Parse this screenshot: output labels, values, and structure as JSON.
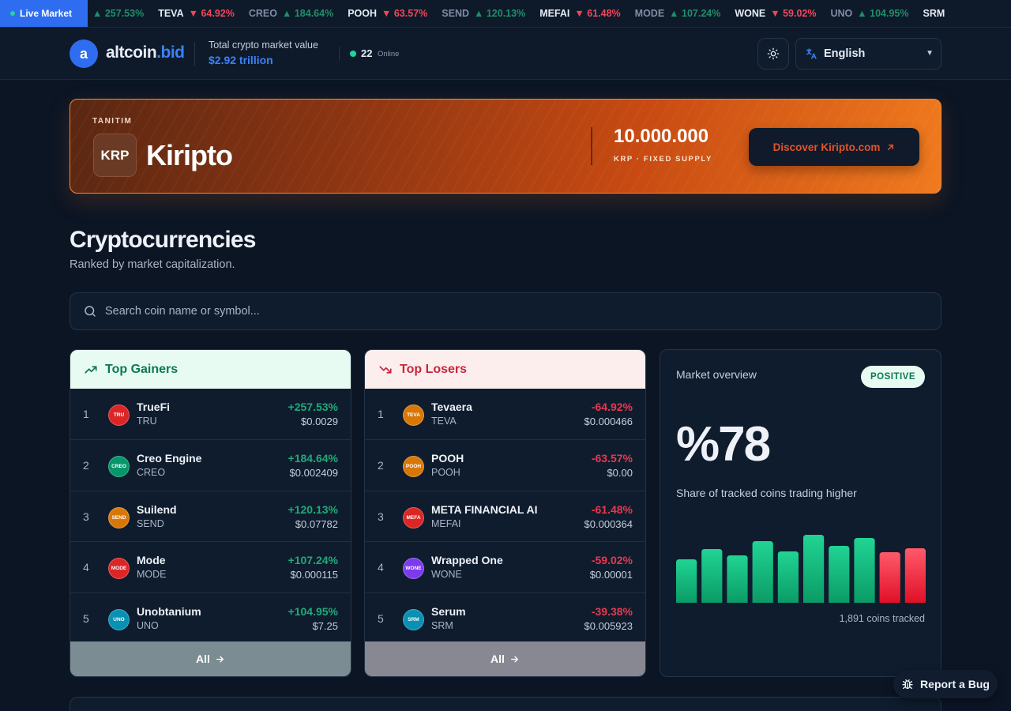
{
  "ticker": {
    "live_label": "Live Market",
    "items": [
      {
        "symbol": "",
        "change": "▲ 257.53%",
        "direction": "up",
        "dim": true
      },
      {
        "symbol": "TEVA",
        "change": "▼ 64.92%",
        "direction": "down",
        "dim": false
      },
      {
        "symbol": "CREO",
        "change": "▲ 184.64%",
        "direction": "up",
        "dim": true
      },
      {
        "symbol": "POOH",
        "change": "▼ 63.57%",
        "direction": "down",
        "dim": false
      },
      {
        "symbol": "SEND",
        "change": "▲ 120.13%",
        "direction": "up",
        "dim": true
      },
      {
        "symbol": "MEFAI",
        "change": "▼ 61.48%",
        "direction": "down",
        "dim": false
      },
      {
        "symbol": "MODE",
        "change": "▲ 107.24%",
        "direction": "up",
        "dim": true
      },
      {
        "symbol": "WONE",
        "change": "▼ 59.02%",
        "direction": "down",
        "dim": false
      },
      {
        "symbol": "UNO",
        "change": "▲ 104.95%",
        "direction": "up",
        "dim": true
      },
      {
        "symbol": "SRM",
        "change": "",
        "direction": "down",
        "dim": false
      }
    ]
  },
  "header": {
    "logo_letter": "a",
    "logo_name": "altcoin",
    "logo_tld": ".bid",
    "market_label": "Total crypto market value",
    "market_value": "$2.92 trillion",
    "online_count": "22",
    "online_label": "Online",
    "language": "English"
  },
  "promo": {
    "kicker": "TANITIM",
    "logo_text": "KRP",
    "name": "Kiripto",
    "supply": "10.000.000",
    "supply_sub": "KRP · FIXED SUPPLY",
    "cta": "Discover Kiripto.com"
  },
  "section": {
    "title": "Cryptocurrencies",
    "subtitle": "Ranked by market capitalization."
  },
  "search": {
    "placeholder": "Search coin name or symbol..."
  },
  "gainers": {
    "title": "Top Gainers",
    "footer": "All",
    "rows": [
      {
        "rank": "1",
        "icon": "TRU",
        "color": "#dc2626",
        "name": "TrueFi",
        "symbol": "TRU",
        "change": "+257.53%",
        "price": "$0.0029"
      },
      {
        "rank": "2",
        "icon": "CREO",
        "color": "#059669",
        "name": "Creo Engine",
        "symbol": "CREO",
        "change": "+184.64%",
        "price": "$0.002409"
      },
      {
        "rank": "3",
        "icon": "SEND",
        "color": "#d97706",
        "name": "Suilend",
        "symbol": "SEND",
        "change": "+120.13%",
        "price": "$0.07782"
      },
      {
        "rank": "4",
        "icon": "MODE",
        "color": "#dc2626",
        "name": "Mode",
        "symbol": "MODE",
        "change": "+107.24%",
        "price": "$0.000115"
      },
      {
        "rank": "5",
        "icon": "UNO",
        "color": "#0891b2",
        "name": "Unobtanium",
        "symbol": "UNO",
        "change": "+104.95%",
        "price": "$7.25"
      }
    ]
  },
  "losers": {
    "title": "Top Losers",
    "footer": "All",
    "rows": [
      {
        "rank": "1",
        "icon": "TEVA",
        "color": "#d97706",
        "name": "Tevaera",
        "symbol": "TEVA",
        "change": "-64.92%",
        "price": "$0.000466"
      },
      {
        "rank": "2",
        "icon": "POOH",
        "color": "#d97706",
        "name": "POOH",
        "symbol": "POOH",
        "change": "-63.57%",
        "price": "$0.00"
      },
      {
        "rank": "3",
        "icon": "MEFA",
        "color": "#dc2626",
        "name": "META FINANCIAL AI",
        "symbol": "MEFAI",
        "change": "-61.48%",
        "price": "$0.000364"
      },
      {
        "rank": "4",
        "icon": "WONE",
        "color": "#7c3aed",
        "name": "Wrapped One",
        "symbol": "WONE",
        "change": "-59.02%",
        "price": "$0.00001"
      },
      {
        "rank": "5",
        "icon": "SRM",
        "color": "#0891b2",
        "name": "Serum",
        "symbol": "SRM",
        "change": "-39.38%",
        "price": "$0.005923"
      }
    ]
  },
  "overview": {
    "label": "Market overview",
    "badge": "POSITIVE",
    "value": "%78",
    "caption": "Share of tracked coins trading higher",
    "tracked": "1,891 coins tracked",
    "bars": [
      {
        "level": 0.55,
        "direction": "up"
      },
      {
        "level": 0.68,
        "direction": "up"
      },
      {
        "level": 0.6,
        "direction": "up"
      },
      {
        "level": 0.78,
        "direction": "up"
      },
      {
        "level": 0.65,
        "direction": "up"
      },
      {
        "level": 0.86,
        "direction": "up"
      },
      {
        "level": 0.72,
        "direction": "up"
      },
      {
        "level": 0.82,
        "direction": "up"
      },
      {
        "level": 0.64,
        "direction": "down"
      },
      {
        "level": 0.69,
        "direction": "down"
      }
    ]
  },
  "report": {
    "label": "Report a Bug"
  },
  "colors": {
    "accent": "#2f6df0",
    "up": "#22c58b",
    "down": "#f0475a",
    "promo_cta": "#e0552a"
  }
}
